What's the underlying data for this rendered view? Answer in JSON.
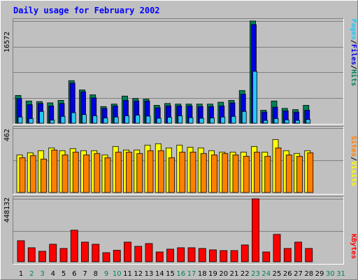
{
  "chart_data": {
    "type": "bar",
    "title": "Daily usage for February 2002",
    "x": [
      "1",
      "2",
      "3",
      "4",
      "5",
      "6",
      "7",
      "8",
      "9",
      "10",
      "11",
      "12",
      "13",
      "14",
      "15",
      "16",
      "17",
      "18",
      "19",
      "20",
      "21",
      "22",
      "23",
      "24",
      "25",
      "26",
      "27",
      "28",
      "29",
      "30",
      "31"
    ],
    "weekend_days": [
      "2",
      "3",
      "9",
      "10",
      "16",
      "17",
      "23",
      "24",
      "30",
      "31"
    ],
    "panels": [
      {
        "name": "top",
        "axis_label": "16572",
        "ylim": [
          0,
          16572
        ],
        "series": [
          {
            "name": "Hits",
            "color": "#00805a",
            "values": [
              4500,
              3600,
              3500,
              3300,
              3700,
              6900,
              5400,
              4600,
              2700,
              3100,
              4400,
              4000,
              3900,
              2900,
              3200,
              3100,
              3100,
              3100,
              3100,
              3400,
              3700,
              5300,
              16572,
              2100,
              3600,
              2400,
              2200,
              2900,
              0,
              0,
              0
            ]
          },
          {
            "name": "Files",
            "color": "#0000e0",
            "values": [
              4000,
              3000,
              3200,
              2800,
              3200,
              6500,
              5100,
              4100,
              2400,
              2800,
              3700,
              3600,
              3600,
              2500,
              2800,
              2800,
              2800,
              2700,
              2700,
              2800,
              3300,
              4700,
              16000,
              1800,
              2600,
              2000,
              1800,
              2100,
              0,
              0,
              0
            ]
          },
          {
            "name": "Pages",
            "color": "#26c6f4",
            "values": [
              1000,
              750,
              1900,
              500,
              1100,
              1700,
              1400,
              1200,
              850,
              1000,
              1200,
              1300,
              1150,
              800,
              950,
              1200,
              900,
              800,
              850,
              1000,
              1100,
              1900,
              8400,
              450,
              750,
              550,
              450,
              600,
              0,
              0,
              0
            ]
          }
        ]
      },
      {
        "name": "middle",
        "axis_label": "462",
        "ylim": [
          0,
          462
        ],
        "series": [
          {
            "name": "Visits",
            "color": "#ffff00",
            "values": [
              270,
              285,
              300,
              320,
              300,
              315,
              300,
              300,
              270,
              330,
              305,
              305,
              340,
              350,
              320,
              340,
              325,
              320,
              300,
              290,
              290,
              290,
              330,
              290,
              380,
              300,
              280,
              300,
              0,
              0,
              0
            ]
          },
          {
            "name": "Sites",
            "color": "#ff8000",
            "values": [
              250,
              265,
              240,
              305,
              270,
              290,
              270,
              280,
              250,
              290,
              290,
              280,
              300,
              300,
              250,
              290,
              290,
              280,
              270,
              280,
              270,
              260,
              290,
              260,
              320,
              270,
              260,
              285,
              0,
              0,
              0
            ]
          }
        ]
      },
      {
        "name": "bottom",
        "axis_label": "448132",
        "ylim": [
          0,
          448132
        ],
        "series": [
          {
            "name": "KBytes",
            "color": "#ff0000",
            "values": [
              150000,
              100000,
              75000,
              125000,
              95000,
              225000,
              140000,
              125000,
              65000,
              82000,
              140000,
              110000,
              130000,
              70000,
              90000,
              100000,
              100000,
              95000,
              85000,
              80000,
              80000,
              120000,
              448132,
              70000,
              195000,
              95000,
              140000,
              95000,
              0,
              0,
              0
            ]
          }
        ]
      }
    ]
  }
}
